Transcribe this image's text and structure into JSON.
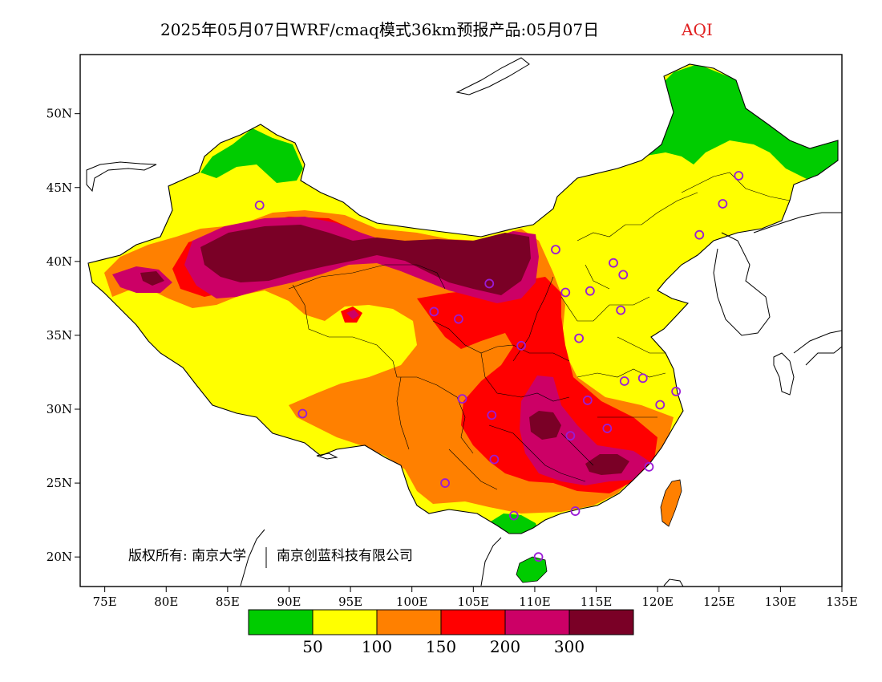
{
  "title": {
    "main": "2025年05月07日WRF/cmaq模式36km预报产品:05月07日",
    "variable": "AQI"
  },
  "copyright": {
    "prefix": "版权所有: 南京大学",
    "suffix": "南京创蓝科技有限公司"
  },
  "map": {
    "lon_range": [
      73,
      135
    ],
    "lat_range": [
      18,
      54
    ],
    "x_ticks": [
      "75E",
      "80E",
      "85E",
      "90E",
      "95E",
      "100E",
      "105E",
      "110E",
      "115E",
      "120E",
      "125E",
      "130E",
      "135E"
    ],
    "x_tick_values": [
      75,
      80,
      85,
      90,
      95,
      100,
      105,
      110,
      115,
      120,
      125,
      130,
      135
    ],
    "y_ticks": [
      "20N",
      "25N",
      "30N",
      "35N",
      "40N",
      "45N",
      "50N"
    ],
    "y_tick_values": [
      20,
      25,
      30,
      35,
      40,
      45,
      50
    ]
  },
  "legend": {
    "colors": [
      "#00cc00",
      "#ffff00",
      "#ff8000",
      "#ff0000",
      "#cc0066",
      "#7a0026"
    ],
    "labels": [
      "50",
      "100",
      "150",
      "200",
      "300"
    ]
  },
  "colors": {
    "good": "#00cc00",
    "moderate": "#ffff00",
    "unhealthy_sensitive": "#ff8000",
    "unhealthy": "#ff0000",
    "very_unhealthy": "#cc0066",
    "hazardous": "#7a0026",
    "city_marker": "#9a1bd6",
    "aqi_label": "#e02020"
  },
  "cities": [
    [
      87.6,
      43.8
    ],
    [
      91.1,
      29.7
    ],
    [
      101.8,
      36.6
    ],
    [
      103.8,
      36.1
    ],
    [
      106.3,
      38.5
    ],
    [
      104.1,
      30.7
    ],
    [
      106.5,
      29.6
    ],
    [
      106.7,
      26.6
    ],
    [
      102.7,
      25.0
    ],
    [
      108.9,
      34.3
    ],
    [
      112.5,
      37.9
    ],
    [
      114.5,
      38.0
    ],
    [
      111.7,
      40.8
    ],
    [
      116.4,
      39.9
    ],
    [
      117.2,
      39.1
    ],
    [
      117.0,
      36.7
    ],
    [
      113.6,
      34.8
    ],
    [
      114.3,
      30.6
    ],
    [
      112.9,
      28.2
    ],
    [
      115.9,
      28.7
    ],
    [
      117.3,
      31.9
    ],
    [
      118.8,
      32.1
    ],
    [
      120.2,
      30.3
    ],
    [
      121.5,
      31.2
    ],
    [
      119.3,
      26.1
    ],
    [
      113.3,
      23.1
    ],
    [
      108.3,
      22.8
    ],
    [
      110.3,
      20.0
    ],
    [
      123.4,
      41.8
    ],
    [
      125.3,
      43.9
    ],
    [
      126.6,
      45.8
    ]
  ]
}
